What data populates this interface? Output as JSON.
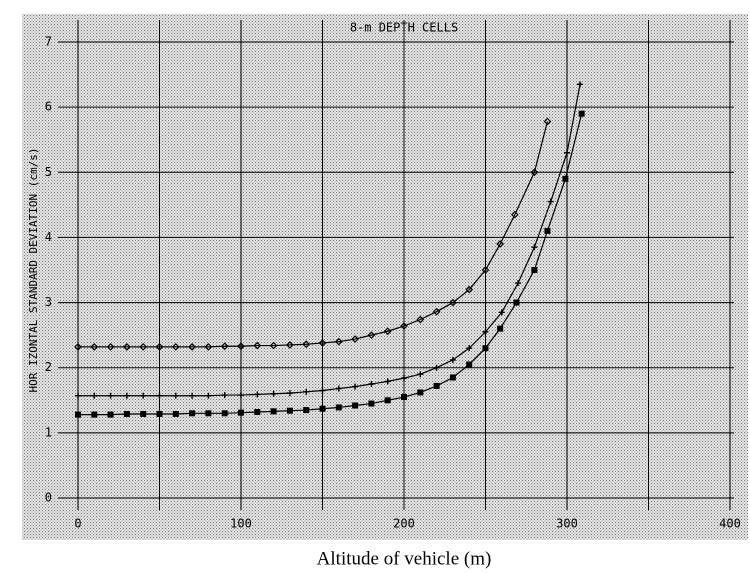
{
  "chart_data": {
    "type": "line",
    "title": "8-m DEPTH CELLS",
    "ylabel": "HOR IZONTAL STANDARD DEVIATION (cm/s)",
    "xlabel": "Altitude of vehicle (m)",
    "xlim": [
      0,
      400
    ],
    "xticks": [
      0,
      100,
      200,
      300,
      400
    ],
    "x_minor_grid": [
      50,
      150,
      250,
      350
    ],
    "ylim": [
      0,
      7
    ],
    "yticks": [
      0,
      1,
      2,
      3,
      4,
      5,
      6,
      7
    ],
    "grid": true,
    "series": [
      {
        "marker": "diamond",
        "color": "#000000",
        "x": [
          0,
          10,
          20,
          30,
          40,
          50,
          60,
          70,
          80,
          90,
          100,
          110,
          120,
          130,
          140,
          150,
          160,
          170,
          180,
          190,
          200,
          210,
          220,
          230,
          240,
          250,
          259,
          268,
          280,
          288
        ],
        "values": [
          2.32,
          2.32,
          2.32,
          2.32,
          2.32,
          2.32,
          2.32,
          2.32,
          2.32,
          2.33,
          2.33,
          2.34,
          2.34,
          2.35,
          2.36,
          2.38,
          2.4,
          2.44,
          2.5,
          2.56,
          2.64,
          2.74,
          2.86,
          3.0,
          3.2,
          3.5,
          3.9,
          4.35,
          5.0,
          5.78
        ]
      },
      {
        "marker": "plus",
        "color": "#000000",
        "x": [
          0,
          10,
          20,
          30,
          40,
          50,
          60,
          70,
          80,
          90,
          100,
          110,
          120,
          130,
          140,
          150,
          160,
          170,
          180,
          190,
          200,
          210,
          220,
          230,
          240,
          250,
          260,
          270,
          280,
          290,
          300,
          308
        ],
        "values": [
          1.57,
          1.57,
          1.57,
          1.57,
          1.57,
          1.57,
          1.57,
          1.57,
          1.57,
          1.58,
          1.58,
          1.59,
          1.6,
          1.61,
          1.63,
          1.65,
          1.68,
          1.71,
          1.75,
          1.79,
          1.84,
          1.9,
          2.0,
          2.12,
          2.3,
          2.55,
          2.85,
          3.3,
          3.85,
          4.55,
          5.3,
          6.35
        ]
      },
      {
        "marker": "square",
        "color": "#000000",
        "x": [
          0,
          10,
          20,
          30,
          40,
          50,
          60,
          70,
          80,
          90,
          100,
          110,
          120,
          130,
          140,
          150,
          160,
          170,
          180,
          190,
          200,
          210,
          220,
          230,
          240,
          250,
          259,
          269,
          280,
          288,
          299,
          309
        ],
        "values": [
          1.28,
          1.28,
          1.28,
          1.29,
          1.29,
          1.29,
          1.29,
          1.3,
          1.3,
          1.3,
          1.31,
          1.32,
          1.33,
          1.34,
          1.35,
          1.37,
          1.39,
          1.42,
          1.45,
          1.5,
          1.55,
          1.62,
          1.72,
          1.85,
          2.05,
          2.3,
          2.6,
          3.0,
          3.5,
          4.1,
          4.9,
          5.9
        ]
      }
    ]
  }
}
